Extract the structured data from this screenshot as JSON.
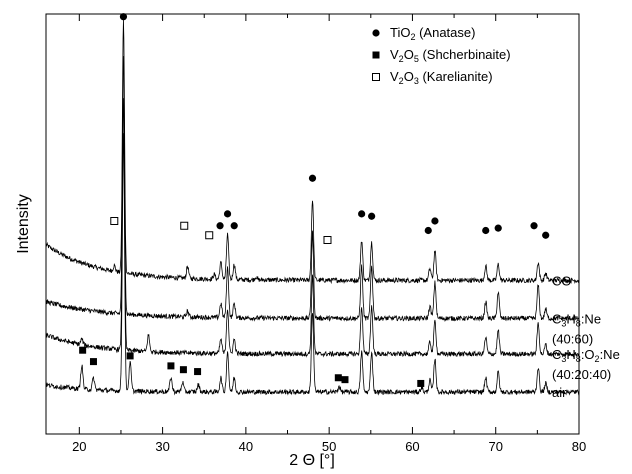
{
  "chart_data": {
    "type": "line",
    "title": "",
    "xlabel": "2 Θ [°]",
    "ylabel": "Intensity",
    "xlim": [
      16,
      80
    ],
    "x_ticks": [
      20,
      30,
      40,
      50,
      60,
      70,
      80
    ],
    "y_ticks": "none",
    "grid": false,
    "legend": {
      "placement": "top-right",
      "entries": [
        {
          "marker": "filled-circle",
          "formula": "TiO",
          "sub1": "2",
          "mid": "",
          "sub2": "",
          "name": " (Anatase)"
        },
        {
          "marker": "filled-square",
          "formula": "V",
          "sub1": "2",
          "mid": "O",
          "sub2": "5",
          "name": " (Shcherbinaite)"
        },
        {
          "marker": "open-square",
          "formula": "V",
          "sub1": "2",
          "mid": "O",
          "sub2": "3",
          "name": " (Karelianite)"
        }
      ]
    },
    "series": [
      {
        "label_parts": [
          {
            "t": "CO"
          }
        ],
        "label_line2": "",
        "baseline": 2.35,
        "background": {
          "amp": 0.75,
          "decay": 6
        },
        "peaks": [
          {
            "x": 24.2,
            "h": 0.12
          },
          {
            "x": 25.3,
            "h": 5.3
          },
          {
            "x": 33.0,
            "h": 0.25
          },
          {
            "x": 36.2,
            "h": 0.1
          },
          {
            "x": 37.0,
            "h": 0.35
          },
          {
            "x": 37.8,
            "h": 0.95
          },
          {
            "x": 38.6,
            "h": 0.32
          },
          {
            "x": 41.2,
            "h": 0.06
          },
          {
            "x": 48.0,
            "h": 1.7
          },
          {
            "x": 53.9,
            "h": 0.85
          },
          {
            "x": 55.1,
            "h": 0.8
          },
          {
            "x": 62.1,
            "h": 0.25
          },
          {
            "x": 62.7,
            "h": 0.62
          },
          {
            "x": 68.8,
            "h": 0.3
          },
          {
            "x": 70.3,
            "h": 0.34
          },
          {
            "x": 75.1,
            "h": 0.38
          },
          {
            "x": 76.0,
            "h": 0.15
          }
        ]
      },
      {
        "label_parts": [
          {
            "t": "C"
          },
          {
            "t": "3",
            "sub": true
          },
          {
            "t": "H"
          },
          {
            "t": "8",
            "sub": true
          },
          {
            "t": ":Ne"
          }
        ],
        "label_line2": "(40:60)",
        "baseline": 1.55,
        "background": {
          "amp": 0.35,
          "decay": 7
        },
        "peaks": [
          {
            "x": 25.3,
            "h": 5.4
          },
          {
            "x": 33.0,
            "h": 0.12
          },
          {
            "x": 37.0,
            "h": 0.3
          },
          {
            "x": 37.8,
            "h": 1.05
          },
          {
            "x": 38.6,
            "h": 0.3
          },
          {
            "x": 48.0,
            "h": 1.8
          },
          {
            "x": 53.9,
            "h": 1.1
          },
          {
            "x": 55.1,
            "h": 1.1
          },
          {
            "x": 62.1,
            "h": 0.25
          },
          {
            "x": 62.7,
            "h": 0.75
          },
          {
            "x": 68.8,
            "h": 0.35
          },
          {
            "x": 70.3,
            "h": 0.55
          },
          {
            "x": 75.1,
            "h": 0.7
          },
          {
            "x": 76.0,
            "h": 0.2
          }
        ]
      },
      {
        "label_parts": [
          {
            "t": "C"
          },
          {
            "t": "3",
            "sub": true
          },
          {
            "t": "H"
          },
          {
            "t": "8",
            "sub": true
          },
          {
            "t": ":O"
          },
          {
            "t": "2",
            "sub": true
          },
          {
            "t": ":Ne"
          }
        ],
        "label_line2": "(40:20:40)",
        "baseline": 0.8,
        "background": {
          "amp": 0.4,
          "decay": 6
        },
        "peaks": [
          {
            "x": 20.3,
            "h": 0.12
          },
          {
            "x": 25.3,
            "h": 5.3
          },
          {
            "x": 28.3,
            "h": 0.35
          },
          {
            "x": 37.0,
            "h": 0.3
          },
          {
            "x": 37.8,
            "h": 0.95
          },
          {
            "x": 38.6,
            "h": 0.3
          },
          {
            "x": 48.0,
            "h": 1.65
          },
          {
            "x": 53.9,
            "h": 1.0
          },
          {
            "x": 55.1,
            "h": 1.0
          },
          {
            "x": 62.1,
            "h": 0.25
          },
          {
            "x": 62.7,
            "h": 0.7
          },
          {
            "x": 68.8,
            "h": 0.35
          },
          {
            "x": 70.3,
            "h": 0.5
          },
          {
            "x": 75.1,
            "h": 0.65
          },
          {
            "x": 76.0,
            "h": 0.2
          }
        ]
      },
      {
        "label_parts": [
          {
            "t": "air"
          }
        ],
        "label_line2": "",
        "baseline": 0.0,
        "background": {
          "amp": 0.15,
          "decay": 5
        },
        "peaks": [
          {
            "x": 20.3,
            "h": 0.5
          },
          {
            "x": 21.7,
            "h": 0.25
          },
          {
            "x": 25.3,
            "h": 5.4
          },
          {
            "x": 26.1,
            "h": 0.6
          },
          {
            "x": 31.0,
            "h": 0.3
          },
          {
            "x": 32.4,
            "h": 0.2
          },
          {
            "x": 34.3,
            "h": 0.15
          },
          {
            "x": 37.0,
            "h": 0.3
          },
          {
            "x": 37.8,
            "h": 0.85
          },
          {
            "x": 38.6,
            "h": 0.3
          },
          {
            "x": 48.0,
            "h": 1.7
          },
          {
            "x": 51.2,
            "h": 0.12
          },
          {
            "x": 53.9,
            "h": 0.85
          },
          {
            "x": 55.1,
            "h": 0.85
          },
          {
            "x": 61.1,
            "h": 0.1
          },
          {
            "x": 62.1,
            "h": 0.25
          },
          {
            "x": 62.7,
            "h": 0.7
          },
          {
            "x": 68.8,
            "h": 0.3
          },
          {
            "x": 70.3,
            "h": 0.42
          },
          {
            "x": 75.1,
            "h": 0.52
          },
          {
            "x": 76.0,
            "h": 0.18
          }
        ]
      }
    ],
    "markers": {
      "anatase": [
        {
          "x": 25.3,
          "y": 7.9
        },
        {
          "x": 36.9,
          "y": 3.5
        },
        {
          "x": 37.8,
          "y": 3.75
        },
        {
          "x": 38.6,
          "y": 3.5
        },
        {
          "x": 48.0,
          "y": 4.5
        },
        {
          "x": 53.9,
          "y": 3.75
        },
        {
          "x": 55.1,
          "y": 3.7
        },
        {
          "x": 61.9,
          "y": 3.4
        },
        {
          "x": 62.7,
          "y": 3.6
        },
        {
          "x": 68.8,
          "y": 3.4
        },
        {
          "x": 70.3,
          "y": 3.45
        },
        {
          "x": 74.6,
          "y": 3.5
        },
        {
          "x": 76.0,
          "y": 3.3
        }
      ],
      "shcherbinaite": [
        {
          "x": 20.4,
          "y": 0.88
        },
        {
          "x": 21.7,
          "y": 0.64
        },
        {
          "x": 26.1,
          "y": 0.76
        },
        {
          "x": 31.0,
          "y": 0.55
        },
        {
          "x": 32.5,
          "y": 0.47
        },
        {
          "x": 34.2,
          "y": 0.43
        },
        {
          "x": 51.1,
          "y": 0.3
        },
        {
          "x": 51.9,
          "y": 0.26
        },
        {
          "x": 61.0,
          "y": 0.18
        }
      ],
      "karelianite": [
        {
          "x": 24.2,
          "y": 3.6
        },
        {
          "x": 32.6,
          "y": 3.5
        },
        {
          "x": 35.6,
          "y": 3.3
        },
        {
          "x": 49.8,
          "y": 3.2
        }
      ]
    }
  }
}
